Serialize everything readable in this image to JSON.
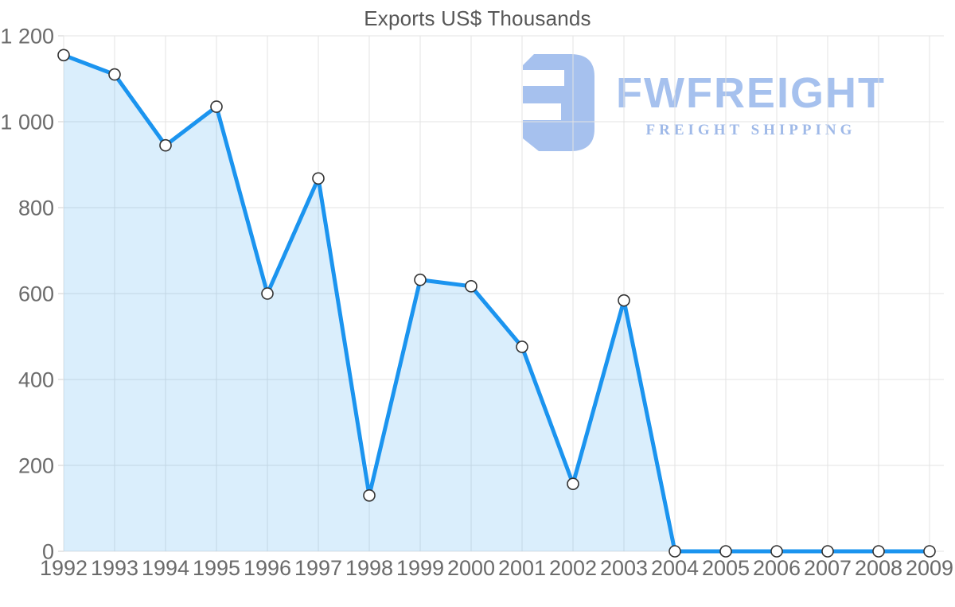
{
  "title": "Exports US$ Thousands",
  "logo": {
    "name": "FWFREIGHT",
    "tagline": "FREIGHT SHIPPING",
    "mark_color": "#a6c1ee",
    "name_color": "#a6c1ee",
    "tagline_color": "#9fb9e8"
  },
  "colors": {
    "line": "#1b94ef",
    "area_fill": "rgba(27,148,239,0.16)",
    "gridline": "#e3e3e3",
    "tick": "#cfcfcf",
    "marker_fill": "#ffffff",
    "marker_stroke": "#333333",
    "axis_text": "#6b6b6b",
    "title_text": "#575757"
  },
  "chart_data": {
    "type": "area",
    "title": "Exports US$ Thousands",
    "categories": [
      "1992",
      "1993",
      "1994",
      "1995",
      "1996",
      "1997",
      "1998",
      "1999",
      "2000",
      "2001",
      "2002",
      "2003",
      "2004",
      "2005",
      "2006",
      "2007",
      "2008",
      "2009"
    ],
    "values": [
      1155,
      1110,
      945,
      1035,
      600,
      868,
      130,
      632,
      617,
      476,
      157,
      584,
      0,
      0,
      0,
      0,
      0,
      0
    ],
    "xlabel": "",
    "ylabel": "",
    "ylim": [
      0,
      1200
    ],
    "ytick_step": 200,
    "ytick_labels": [
      "0",
      "200",
      "400",
      "600",
      "800",
      "1 000",
      "1 200"
    ],
    "grid": true,
    "legend": "none",
    "marker": "circle"
  }
}
